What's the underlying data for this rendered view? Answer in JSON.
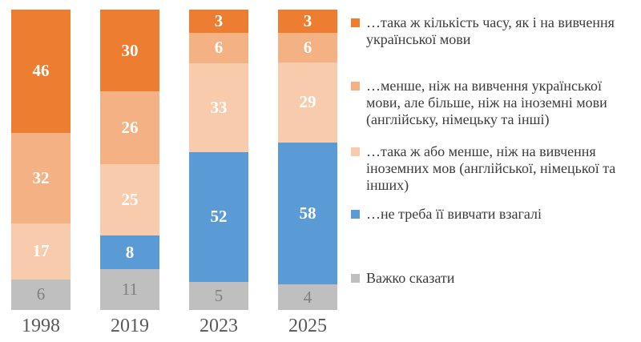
{
  "chart_data": {
    "type": "bar",
    "subtype": "stacked-100-percent-column",
    "title": "",
    "xlabel": "",
    "ylabel": "",
    "grid": false,
    "legend_position": "right",
    "categories": [
      "1998",
      "2019",
      "2023",
      "2025"
    ],
    "series": [
      {
        "name": "…така ж кількість часу, як і на вивчення української мови",
        "color": "#ED7D31",
        "label_color": "#ffffff",
        "values": [
          46,
          30,
          3,
          3
        ]
      },
      {
        "name": "…менше, ніж на вивчення української мови, але більше, ніж на іноземні мови (англійську, німецьку та інші)",
        "color": "#F4B183",
        "label_color": "#ffffff",
        "values": [
          32,
          26,
          6,
          6
        ]
      },
      {
        "name": "…така ж або менше, ніж на вивчення іноземних мов (англійської, німецької та інших)",
        "color": "#F8CBAD",
        "label_color": "#ffffff",
        "values": [
          17,
          25,
          33,
          29
        ]
      },
      {
        "name": "…не треба її вивчати взагалі",
        "color": "#5B9BD5",
        "label_color": "#ffffff",
        "values": [
          0,
          8,
          52,
          58
        ]
      },
      {
        "name": "Важко сказати",
        "color": "#BFBFBF",
        "label_color": "#7f7f7f",
        "values": [
          6,
          11,
          5,
          4
        ]
      }
    ],
    "axis_label_color": "#595959",
    "legend_text_color": "#3b3b3b",
    "background_color": "#ffffff"
  }
}
